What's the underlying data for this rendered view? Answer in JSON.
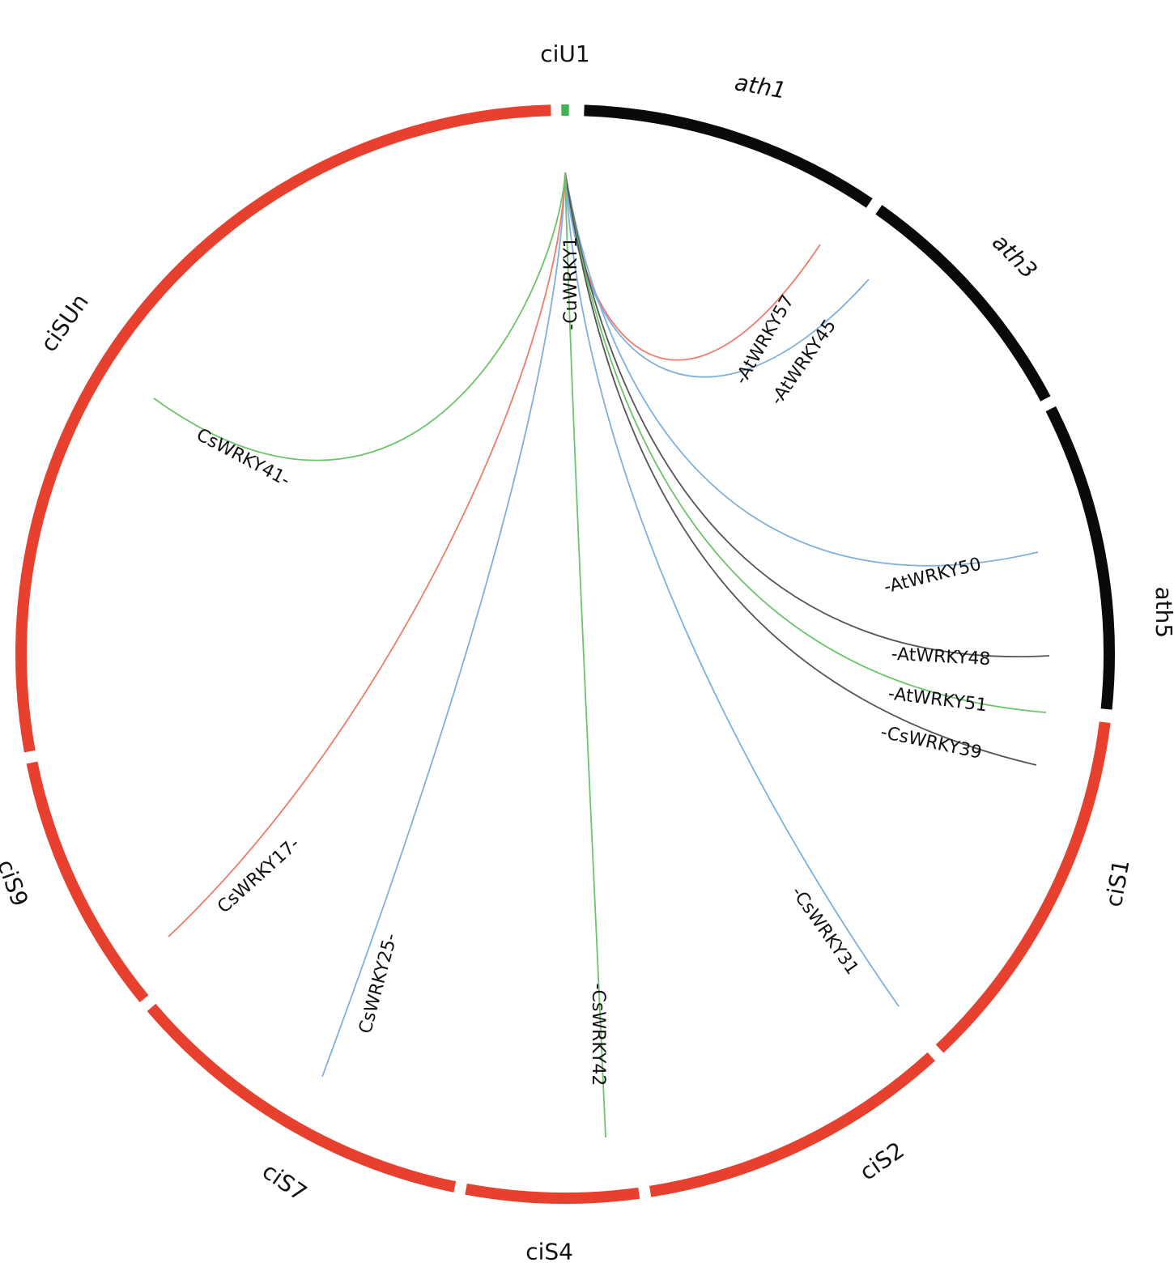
{
  "colors": {
    "red": "#e8402e",
    "black": "#0a0a0a",
    "green": "#3fb34f",
    "link_red": "#ef7b6b",
    "link_blue": "#7fb0dc",
    "link_green": "#6cc46a",
    "link_gray": "#555555"
  },
  "segments": [
    {
      "id": "ciU1",
      "label": "ciU1",
      "color": "green",
      "italic": false
    },
    {
      "id": "ath1",
      "label": "ath1",
      "color": "black",
      "italic": true
    },
    {
      "id": "ath3",
      "label": "ath3",
      "color": "black",
      "italic": true
    },
    {
      "id": "ath5",
      "label": "ath5",
      "color": "black",
      "italic": false
    },
    {
      "id": "ciS1",
      "label": "ciS1",
      "color": "red",
      "italic": false
    },
    {
      "id": "ciS2",
      "label": "ciS2",
      "color": "red",
      "italic": false
    },
    {
      "id": "ciS4",
      "label": "ciS4",
      "color": "red",
      "italic": false
    },
    {
      "id": "ciS7",
      "label": "ciS7",
      "color": "red",
      "italic": false
    },
    {
      "id": "ciS9",
      "label": "ciS9",
      "color": "red",
      "italic": false
    },
    {
      "id": "ciSUn",
      "label": "ciSUn",
      "color": "red",
      "italic": false
    }
  ],
  "source_gene": {
    "label": "-CuWRKY1",
    "segment": "ciU1"
  },
  "links": [
    {
      "target": "-AtWRKY57",
      "segment": "ath3",
      "color": "link_red"
    },
    {
      "target": "-AtWRKY45",
      "segment": "ath3",
      "color": "link_blue"
    },
    {
      "target": "-AtWRKY50",
      "segment": "ath5",
      "color": "link_blue"
    },
    {
      "target": "-AtWRKY48",
      "segment": "ath5",
      "color": "link_gray"
    },
    {
      "target": "-AtWRKY51",
      "segment": "ath5",
      "color": "link_green"
    },
    {
      "target": "-CsWRKY39",
      "segment": "ath5",
      "color": "link_gray"
    },
    {
      "target": "-CsWRKY31",
      "segment": "ciS2",
      "color": "link_blue"
    },
    {
      "target": "-CsWRKY42",
      "segment": "ciS4",
      "color": "link_green"
    },
    {
      "target": "CsWRKY25-",
      "segment": "ciS7",
      "color": "link_blue"
    },
    {
      "target": "CsWRKY17-",
      "segment": "ciS9",
      "color": "link_red"
    },
    {
      "target": "CsWRKY41-",
      "segment": "ciSUn",
      "color": "link_green"
    }
  ]
}
